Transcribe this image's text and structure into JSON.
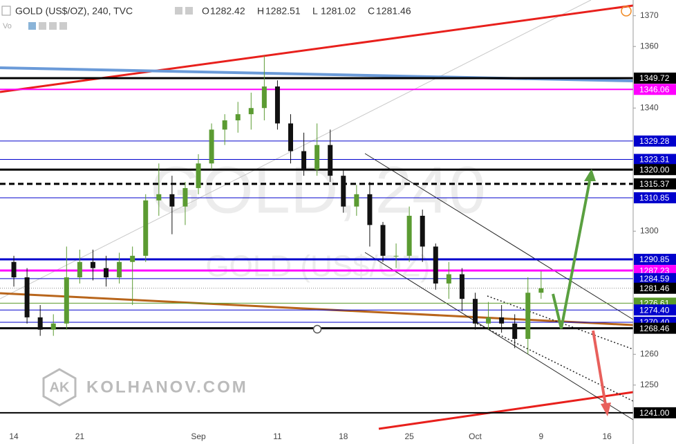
{
  "chart_data": {
    "type": "candlestick",
    "header": {
      "title": "GOLD (US$/OZ), 240, TVC",
      "ohlc": [
        {
          "key": "O",
          "value": 1282.42
        },
        {
          "key": "H",
          "value": 1282.51
        },
        {
          "key": "L",
          "value": 1281.02
        },
        {
          "key": "C",
          "value": 1281.46
        }
      ],
      "indicator": "Vo"
    },
    "watermark": {
      "symbol": "GOLD, 240",
      "name": "GOLD (US$/OZ)",
      "logo": "AK",
      "site": "KOLHANOV.COM"
    },
    "categories": [
      "14",
      null,
      null,
      null,
      null,
      "21",
      null,
      null,
      null,
      null,
      null,
      null,
      null,
      null,
      "Sep",
      null,
      null,
      null,
      null,
      null,
      "11",
      null,
      null,
      null,
      null,
      "18",
      null,
      null,
      null,
      null,
      "25",
      null,
      null,
      null,
      null,
      "Oct",
      null,
      null,
      null,
      null,
      "9",
      null,
      null,
      null,
      null,
      "16",
      null
    ],
    "open": [
      1290,
      1285,
      1272,
      1268,
      1270,
      1285,
      1290,
      1288,
      1285,
      1290,
      1292,
      1310,
      1312,
      1308,
      1314,
      1322,
      1333,
      1336,
      1338,
      1340,
      1347,
      1335,
      1326,
      1320,
      1328,
      1318,
      1308,
      1312,
      1302,
      1292,
      1292,
      1305,
      1295,
      1283,
      1286,
      1278,
      1270,
      1272,
      1270,
      1265,
      1280,
      null,
      null,
      null,
      null,
      null,
      null
    ],
    "high": [
      1292,
      1288,
      1276,
      1273,
      1295,
      1294,
      1294,
      1292,
      1293,
      1295,
      1312,
      1322,
      1318,
      1316,
      1325,
      1335,
      1338,
      1342,
      1345,
      1357,
      1349,
      1338,
      1332,
      1335,
      1333,
      1320,
      1315,
      1316,
      1303,
      1296,
      1308,
      1307,
      1296,
      1290,
      1288,
      1280,
      1277,
      1276,
      1273,
      1285,
      1287,
      null,
      null,
      null,
      null,
      null,
      null
    ],
    "low": [
      1282,
      1270,
      1266,
      1266,
      1268,
      1283,
      1284,
      1282,
      1283,
      1276,
      1290,
      1305,
      1299,
      1302,
      1312,
      1320,
      1328,
      1332,
      1333,
      1336,
      1333,
      1322,
      1318,
      1318,
      1316,
      1306,
      1305,
      1295,
      1290,
      1288,
      1290,
      1290,
      1281,
      1278,
      1274,
      1268,
      1268,
      1267,
      1262,
      1260,
      1278,
      null,
      null,
      null,
      null,
      null,
      null
    ],
    "close": [
      1285,
      1272,
      1268,
      1270,
      1285,
      1290,
      1288,
      1285,
      1290,
      1292,
      1310,
      1312,
      1308,
      1314,
      1322,
      1333,
      1336,
      1338,
      1340,
      1347,
      1335,
      1326,
      1320,
      1328,
      1318,
      1308,
      1312,
      1302,
      1292,
      1292,
      1305,
      1295,
      1283,
      1286,
      1278,
      1270,
      1272,
      1270,
      1265,
      1280,
      1281.46,
      null,
      null,
      null,
      null,
      null,
      null
    ],
    "up_color": "#5b9b32",
    "down_color": "#111111",
    "ylim": [
      1235.8,
      1375.1
    ],
    "yticks": [
      1250,
      1260,
      1300,
      1340,
      1360,
      1370
    ],
    "levels": [
      {
        "value": 1349.72,
        "label": "1349.72",
        "color": "#000000",
        "weight": "thick",
        "style": "solid"
      },
      {
        "value": 1346.06,
        "label": "1346.06",
        "color": "#ff00ff",
        "weight": "medium",
        "style": "solid"
      },
      {
        "value": 1329.28,
        "label": "1329.28",
        "color": "#0000cc",
        "weight": "thin",
        "style": "solid"
      },
      {
        "value": 1323.31,
        "label": "1323.31",
        "color": "#0000cc",
        "weight": "thin",
        "style": "solid"
      },
      {
        "value": 1320.0,
        "label": "1320.00",
        "color": "#000000",
        "weight": "thick",
        "style": "solid"
      },
      {
        "value": 1315.37,
        "label": "1315.37",
        "color": "#000000",
        "weight": "thick",
        "style": "dashed"
      },
      {
        "value": 1310.85,
        "label": "1310.85",
        "color": "#0000cc",
        "weight": "thin",
        "style": "solid"
      },
      {
        "value": 1287.23,
        "label": "1287.23",
        "color": "#ff00ff",
        "weight": "thick",
        "style": "solid"
      },
      {
        "value": 1290.85,
        "label": "1290.85",
        "color": "#0000cc",
        "weight": "thick",
        "style": "solid"
      },
      {
        "value": 1276.61,
        "label": "1276.61",
        "color": "#5a9a2a",
        "weight": "thin",
        "style": "solid"
      },
      {
        "value": 1270.4,
        "label": "1270.40",
        "color": "#0000cc",
        "weight": "thin",
        "style": "solid"
      },
      {
        "value": 1274.4,
        "label": "1274.40",
        "color": "#0000cc",
        "weight": "thin",
        "style": "solid"
      },
      {
        "value": 1268.46,
        "label": "1268.46",
        "color": "#000000",
        "weight": "thick",
        "style": "solid"
      },
      {
        "value": 1284.59,
        "label": "1284.59",
        "color": "#0000cc",
        "weight": "thin",
        "style": "solid"
      },
      {
        "value": 1281.46,
        "label": "1281.46",
        "color": "#000000",
        "weight": "thin",
        "style": "dotted"
      },
      {
        "value": 1241.0,
        "label": "1241.00",
        "color": "#000000",
        "weight": "medium",
        "style": "solid"
      }
    ]
  }
}
